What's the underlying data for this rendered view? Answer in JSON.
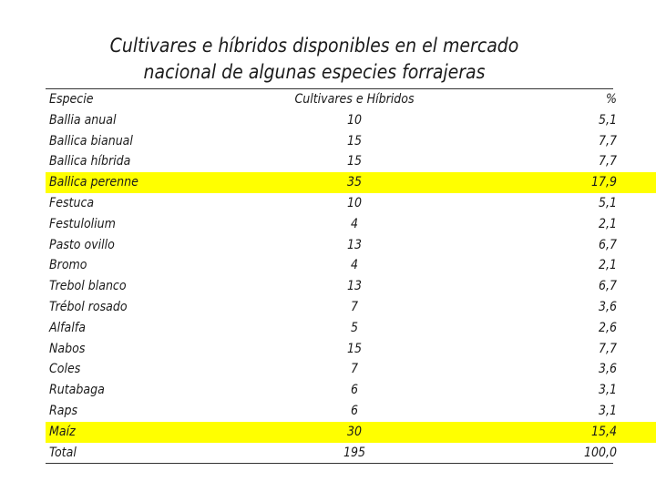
{
  "title": {
    "line1": "Cultivares e híbridos disponibles en el mercado",
    "line2": "nacional de algunas especies forrajeras"
  },
  "headers": {
    "especie": "Especie",
    "cultivares": "Cultivares e Híbridos",
    "pct": "%"
  },
  "highlight_color": "#ffff00",
  "rows": [
    {
      "especie": "Ballia anual",
      "cultivares": "10",
      "pct": "5,1",
      "highlight": false
    },
    {
      "especie": "Ballica bianual",
      "cultivares": "15",
      "pct": "7,7",
      "highlight": false
    },
    {
      "especie": "Ballica híbrida",
      "cultivares": "15",
      "pct": "7,7",
      "highlight": false
    },
    {
      "especie": "Ballica perenne",
      "cultivares": "35",
      "pct": "17,9",
      "highlight": true
    },
    {
      "especie": "Festuca",
      "cultivares": "10",
      "pct": "5,1",
      "highlight": false
    },
    {
      "especie": "Festulolium",
      "cultivares": "4",
      "pct": "2,1",
      "highlight": false
    },
    {
      "especie": "Pasto ovillo",
      "cultivares": "13",
      "pct": "6,7",
      "highlight": false
    },
    {
      "especie": "Bromo",
      "cultivares": "4",
      "pct": "2,1",
      "highlight": false
    },
    {
      "especie": "Trebol blanco",
      "cultivares": "13",
      "pct": "6,7",
      "highlight": false
    },
    {
      "especie": "Trébol rosado",
      "cultivares": "7",
      "pct": "3,6",
      "highlight": false
    },
    {
      "especie": "Alfalfa",
      "cultivares": "5",
      "pct": "2,6",
      "highlight": false
    },
    {
      "especie": "Nabos",
      "cultivares": "15",
      "pct": "7,7",
      "highlight": false
    },
    {
      "especie": "Coles",
      "cultivares": "7",
      "pct": "3,6",
      "highlight": false
    },
    {
      "especie": "Rutabaga",
      "cultivares": "6",
      "pct": "3,1",
      "highlight": false
    },
    {
      "especie": "Raps",
      "cultivares": "6",
      "pct": "3,1",
      "highlight": false
    },
    {
      "especie": "Maíz",
      "cultivares": "30",
      "pct": "15,4",
      "highlight": true
    },
    {
      "especie": "Total",
      "cultivares": "195",
      "pct": "100,0",
      "highlight": false
    }
  ]
}
